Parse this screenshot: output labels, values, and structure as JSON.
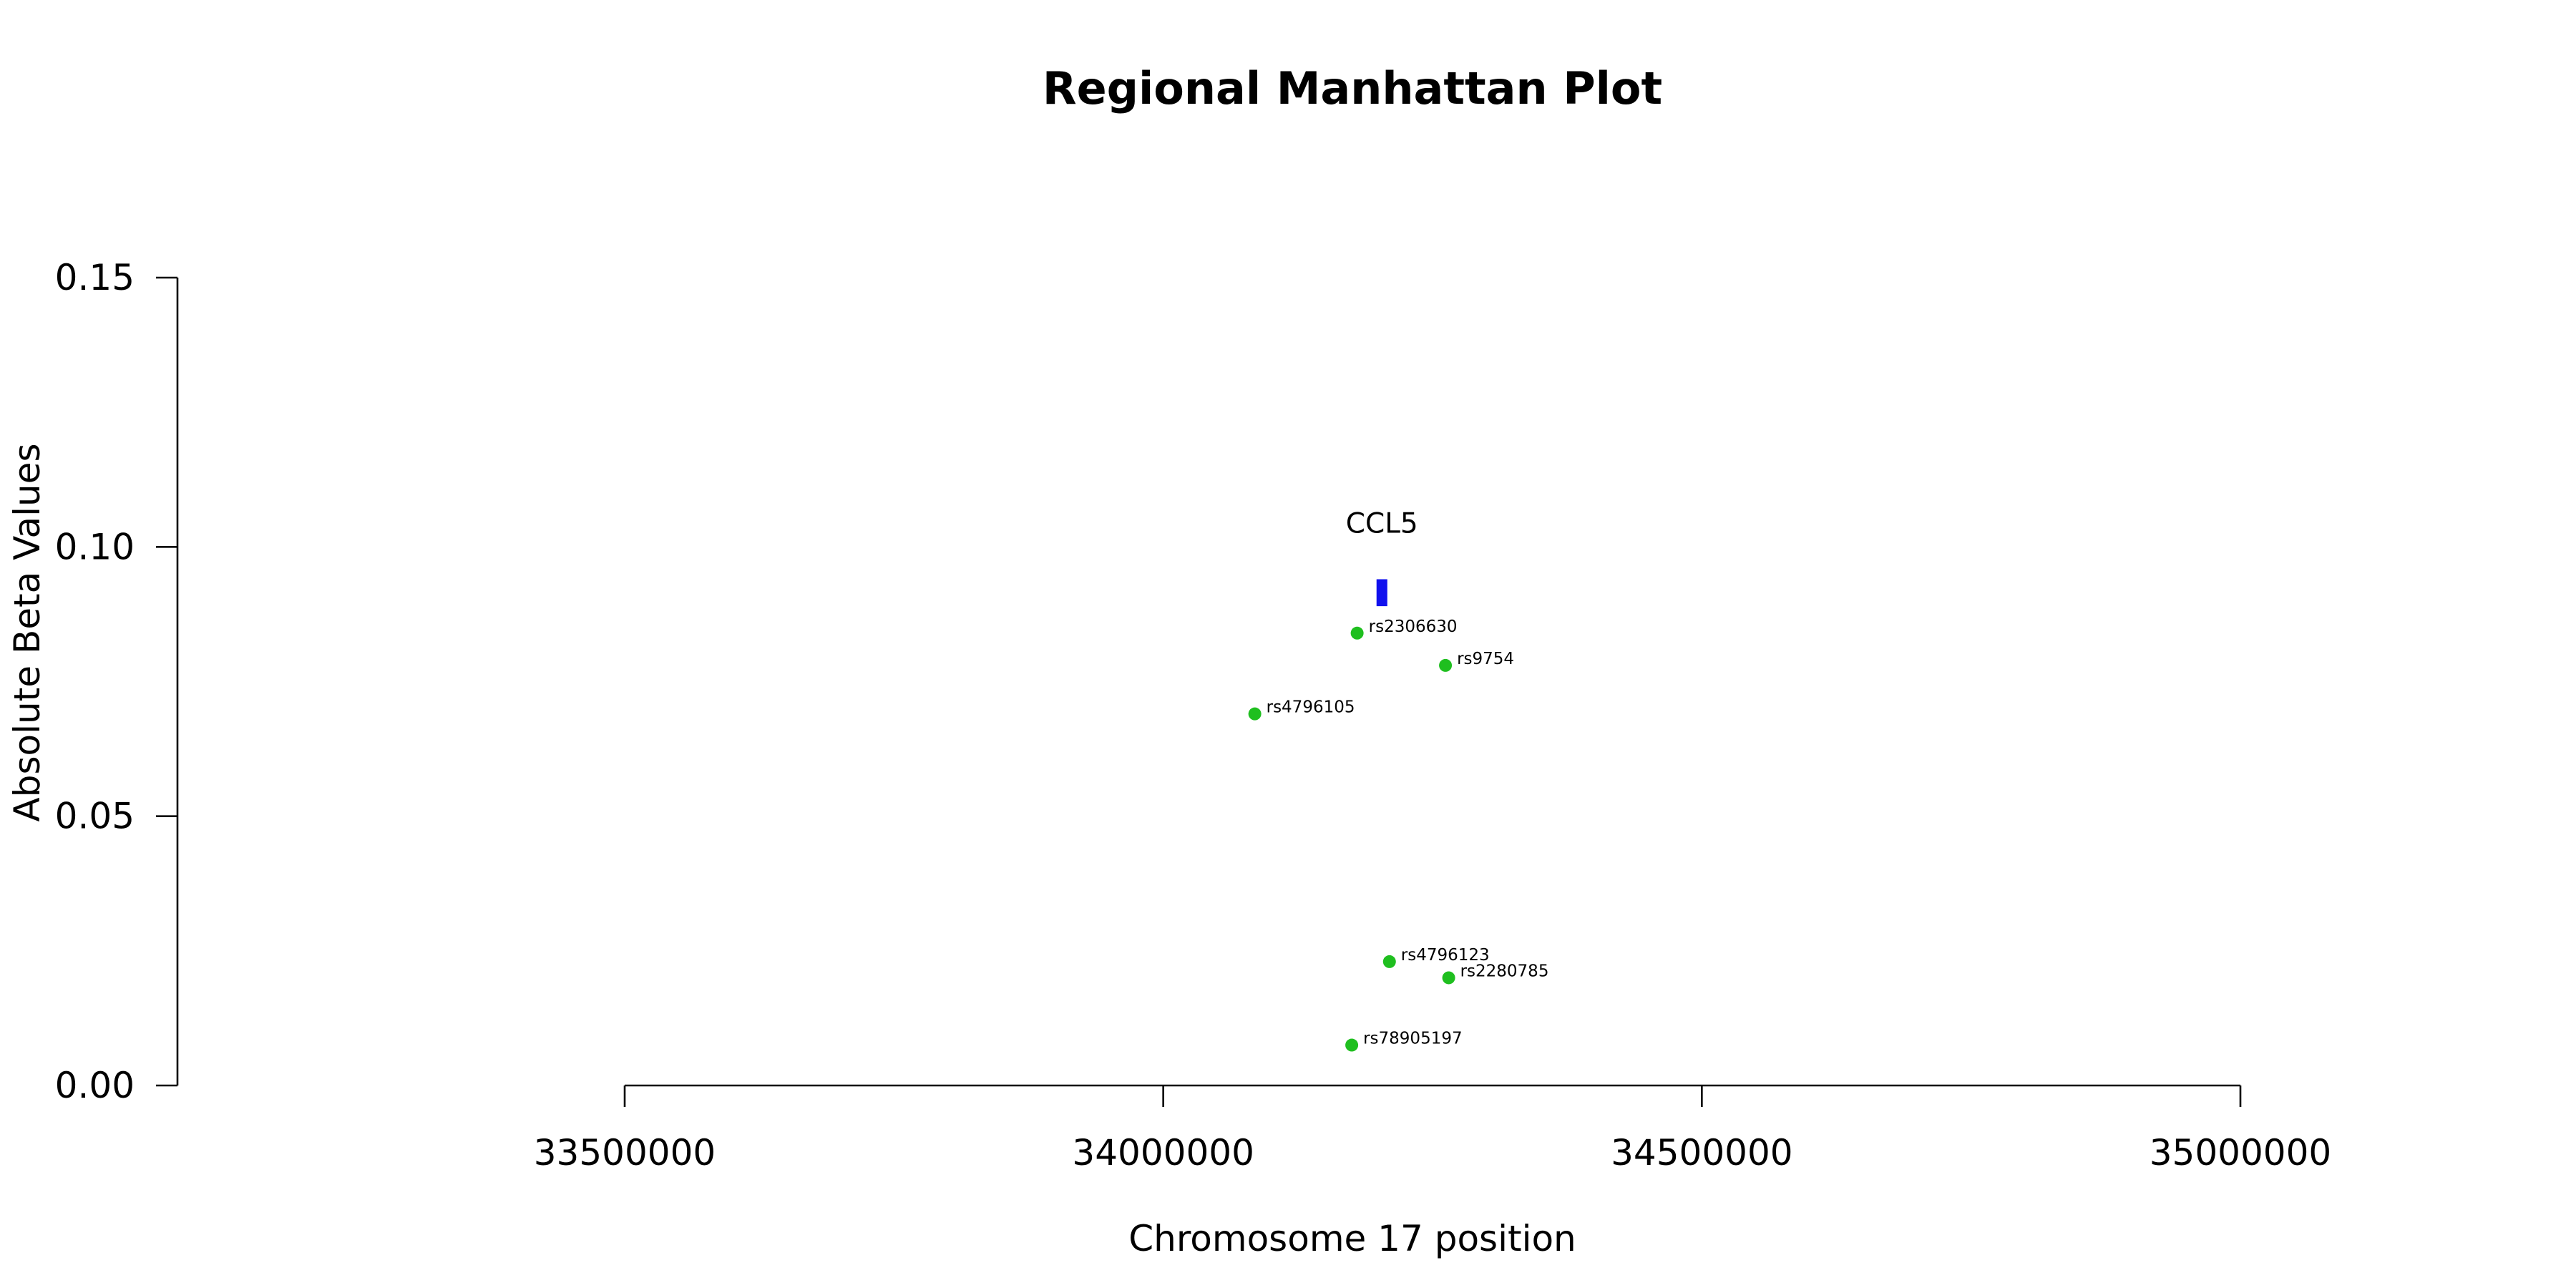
{
  "chart_data": {
    "type": "scatter",
    "title": "Regional Manhattan Plot",
    "xlabel": "Chromosome 17 position",
    "ylabel": "Absolute Beta Values",
    "xlim": [
      33500000,
      35000000
    ],
    "ylim": [
      0,
      0.15
    ],
    "x_ticks": [
      33500000,
      34000000,
      34500000,
      35000000
    ],
    "x_tick_labels": [
      "33500000",
      "34000000",
      "34500000",
      "35000000"
    ],
    "y_ticks": [
      0,
      0.05,
      0.1,
      0.15
    ],
    "y_tick_labels": [
      "0.00",
      "0.05",
      "0.10",
      "0.15"
    ],
    "grid": false,
    "colors": {
      "snp_point": "#1fbf1f",
      "gene_bar": "#1111ee"
    },
    "points": [
      {
        "label": "rs2306630",
        "x": 34180000,
        "y": 0.084
      },
      {
        "label": "rs9754",
        "x": 34262000,
        "y": 0.078
      },
      {
        "label": "rs4796105",
        "x": 34085000,
        "y": 0.069
      },
      {
        "label": "rs4796123",
        "x": 34210000,
        "y": 0.023
      },
      {
        "label": "rs2280785",
        "x": 34265000,
        "y": 0.02
      },
      {
        "label": "rs78905197",
        "x": 34175000,
        "y": 0.0075
      }
    ],
    "genes": [
      {
        "name": "CCL5",
        "start": 34198000,
        "end": 34208000,
        "y_low": 0.089,
        "y_high": 0.094
      }
    ]
  }
}
